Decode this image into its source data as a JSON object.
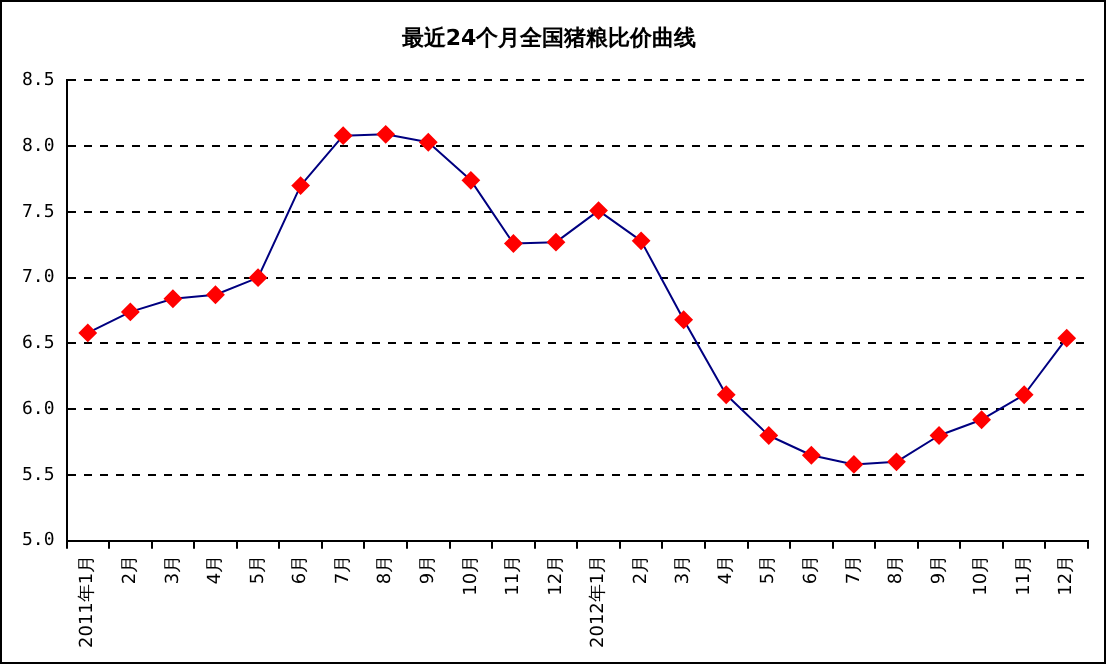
{
  "chart_data": {
    "type": "line",
    "title": "最近24个月全国猪粮比价曲线",
    "categories": [
      "2011年1月",
      "2月",
      "3月",
      "4月",
      "5月",
      "6月",
      "7月",
      "8月",
      "9月",
      "10月",
      "11月",
      "12月",
      "2012年1月",
      "2月",
      "3月",
      "4月",
      "5月",
      "6月",
      "7月",
      "8月",
      "9月",
      "10月",
      "11月",
      "12月"
    ],
    "series": [
      {
        "color": "#000080",
        "colors": [
          "#ff0000",
          "#ff0000",
          "#ff0000",
          "#ff0000",
          "#ff0000",
          "#ff0000",
          "#ff0000",
          "#ff0000",
          "#ff0000",
          "#ff0000",
          "#ff0000",
          "#ff0000",
          "#ff0000",
          "#ff0000",
          "#ff0000",
          "#ff0000",
          "#ff0000",
          "#ff0000",
          "#ff0000",
          "#ff0000",
          "#ff0000",
          "#ff0000",
          "#ff0000",
          "#ff0000"
        ],
        "values": [
          6.58,
          6.74,
          6.84,
          6.87,
          7.0,
          7.7,
          8.08,
          8.09,
          8.03,
          7.74,
          7.26,
          7.27,
          7.51,
          7.28,
          6.68,
          6.11,
          5.8,
          5.65,
          5.58,
          5.6,
          5.8,
          5.92,
          6.11,
          6.54
        ]
      }
    ],
    "ylim": [
      5.0,
      8.5
    ],
    "yticks": [
      {
        "value": 5,
        "label": "5.0"
      },
      5.5,
      {
        "value": 6,
        "label": "6.0"
      },
      6.5,
      {
        "value": 7,
        "label": "7.0"
      },
      7.5,
      {
        "value": 8,
        "label": "8.0"
      },
      8.5
    ],
    "grid": "y",
    "legend": false,
    "marker": "diamond",
    "line_style": "solid"
  }
}
